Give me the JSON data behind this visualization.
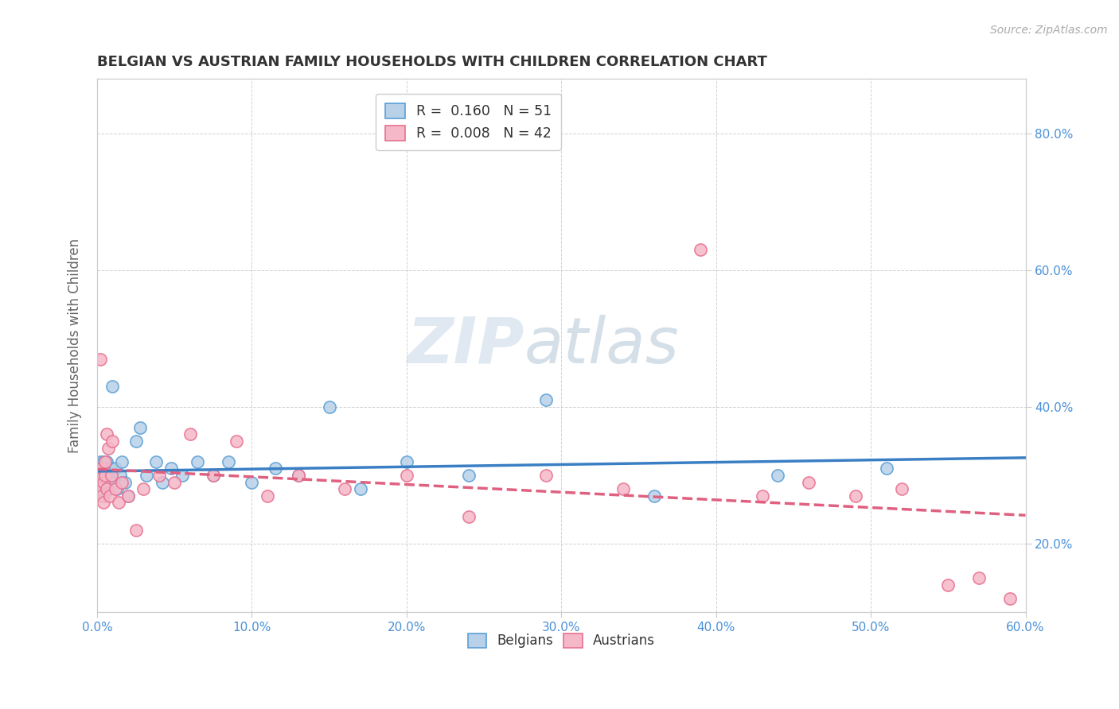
{
  "title": "BELGIAN VS AUSTRIAN FAMILY HOUSEHOLDS WITH CHILDREN CORRELATION CHART",
  "source": "Source: ZipAtlas.com",
  "xlim": [
    0.0,
    0.6
  ],
  "ylim": [
    0.1,
    0.88
  ],
  "ylabel_label": "Family Households with Children",
  "legend_label1": "Belgians",
  "legend_label2": "Austrians",
  "r1": 0.16,
  "n1": 51,
  "r2": 0.008,
  "n2": 42,
  "color_belgian_fill": "#b8d0e8",
  "color_austrian_fill": "#f5b8c8",
  "color_belgian_edge": "#5a9fd4",
  "color_austrian_edge": "#e87090",
  "color_belgian_line": "#3a7fc4",
  "color_austrian_line": "#e06080",
  "watermark_zip": "ZIP",
  "watermark_atlas": "atlas",
  "belgians_x": [
    0.001,
    0.001,
    0.002,
    0.002,
    0.002,
    0.003,
    0.003,
    0.003,
    0.004,
    0.004,
    0.004,
    0.004,
    0.005,
    0.005,
    0.005,
    0.006,
    0.006,
    0.007,
    0.007,
    0.008,
    0.008,
    0.009,
    0.01,
    0.011,
    0.012,
    0.013,
    0.015,
    0.016,
    0.018,
    0.02,
    0.025,
    0.028,
    0.032,
    0.038,
    0.042,
    0.048,
    0.055,
    0.065,
    0.075,
    0.085,
    0.1,
    0.115,
    0.13,
    0.15,
    0.17,
    0.2,
    0.24,
    0.29,
    0.36,
    0.44,
    0.51
  ],
  "belgians_y": [
    0.29,
    0.31,
    0.3,
    0.28,
    0.32,
    0.29,
    0.31,
    0.3,
    0.28,
    0.3,
    0.32,
    0.27,
    0.31,
    0.29,
    0.3,
    0.28,
    0.32,
    0.3,
    0.29,
    0.31,
    0.28,
    0.3,
    0.43,
    0.29,
    0.31,
    0.28,
    0.3,
    0.32,
    0.29,
    0.27,
    0.35,
    0.37,
    0.3,
    0.32,
    0.29,
    0.31,
    0.3,
    0.32,
    0.3,
    0.32,
    0.29,
    0.31,
    0.3,
    0.4,
    0.28,
    0.32,
    0.3,
    0.41,
    0.27,
    0.3,
    0.31
  ],
  "austrians_x": [
    0.001,
    0.001,
    0.002,
    0.002,
    0.003,
    0.003,
    0.004,
    0.004,
    0.005,
    0.005,
    0.006,
    0.006,
    0.007,
    0.008,
    0.009,
    0.01,
    0.012,
    0.014,
    0.016,
    0.02,
    0.025,
    0.03,
    0.04,
    0.05,
    0.06,
    0.075,
    0.09,
    0.11,
    0.13,
    0.16,
    0.2,
    0.24,
    0.29,
    0.34,
    0.39,
    0.43,
    0.46,
    0.49,
    0.52,
    0.55,
    0.57,
    0.59
  ],
  "austrians_y": [
    0.29,
    0.3,
    0.28,
    0.47,
    0.27,
    0.31,
    0.29,
    0.26,
    0.3,
    0.32,
    0.28,
    0.36,
    0.34,
    0.27,
    0.3,
    0.35,
    0.28,
    0.26,
    0.29,
    0.27,
    0.22,
    0.28,
    0.3,
    0.29,
    0.36,
    0.3,
    0.35,
    0.27,
    0.3,
    0.28,
    0.3,
    0.24,
    0.3,
    0.28,
    0.63,
    0.27,
    0.29,
    0.27,
    0.28,
    0.14,
    0.15,
    0.12
  ]
}
